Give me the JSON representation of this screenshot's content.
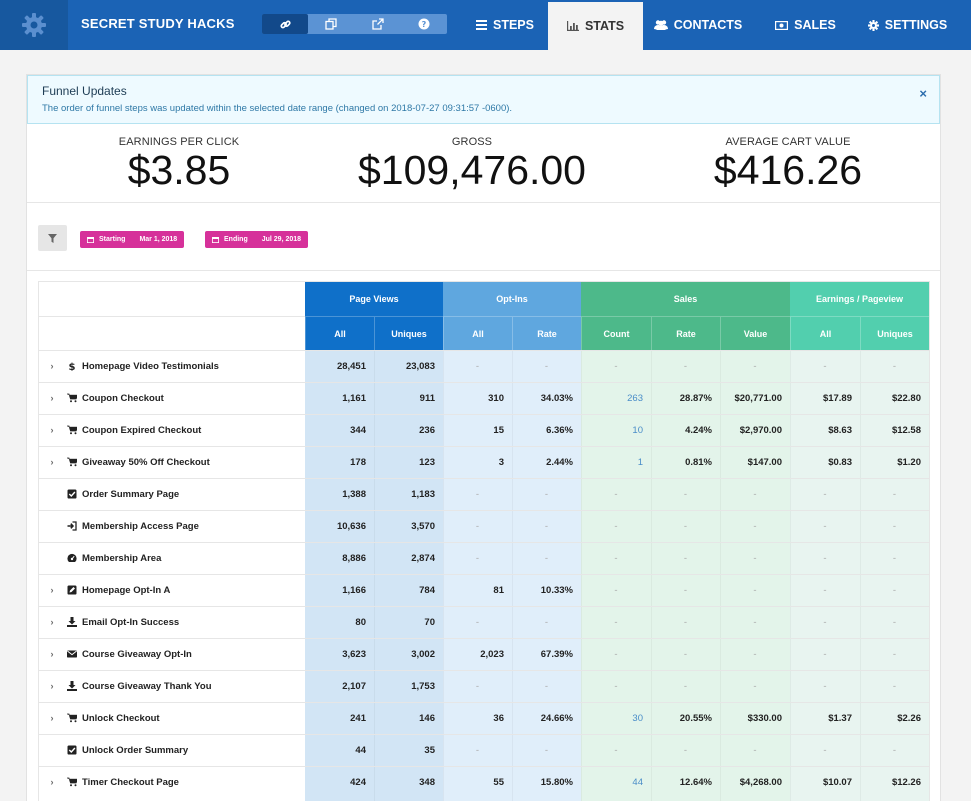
{
  "app": {
    "funnel_name": "SECRET STUDY HACKS"
  },
  "nav": [
    {
      "label": "STEPS",
      "icon": "list-icon"
    },
    {
      "label": "STATS",
      "icon": "bar-chart-icon",
      "active": true
    },
    {
      "label": "CONTACTS",
      "icon": "users-icon"
    },
    {
      "label": "SALES",
      "icon": "money-icon"
    },
    {
      "label": "SETTINGS",
      "icon": "gear-icon"
    }
  ],
  "alert": {
    "title": "Funnel Updates",
    "text": "The order of funnel steps was updated within the selected date range (changed on 2018-07-27 09:31:57 -0600).",
    "close": "×"
  },
  "stats": {
    "epc_label": "EARNINGS PER CLICK",
    "epc_value": "$3.85",
    "gross_label": "GROSS",
    "gross_value": "$109,476.00",
    "acv_label": "AVERAGE CART VALUE",
    "acv_value": "$416.26"
  },
  "filters": {
    "start_label": "Starting",
    "start_value": "Mar 1, 2018",
    "end_label": "Ending",
    "end_value": "Jul 29, 2018"
  },
  "table": {
    "groups": [
      "Page Views",
      "Opt-Ins",
      "Sales",
      "Earnings / Pageview"
    ],
    "subheaders": [
      "All",
      "Uniques",
      "All",
      "Rate",
      "Count",
      "Rate",
      "Value",
      "All",
      "Uniques"
    ],
    "colors": {
      "pv_header": "#0f70c9",
      "optin_header": "#5fa7df",
      "sales_header": "#4db98a",
      "epp_header": "#52cfae",
      "pv_body": "#d2e5f5",
      "optin_body": "#e0eefa",
      "sales_body": "#e3f4ea",
      "epp_body": "#e8f4f0"
    },
    "rows": [
      {
        "name": "Homepage Video Testimonials",
        "icon": "dollar-icon",
        "expandable": true,
        "values": [
          "28,451",
          "23,083",
          "-",
          "-",
          "-",
          "-",
          "-",
          "-",
          "-"
        ]
      },
      {
        "name": "Coupon Checkout",
        "icon": "cart-icon",
        "expandable": true,
        "values": [
          "1,161",
          "911",
          "310",
          "34.03%",
          "263",
          "28.87%",
          "$20,771.00",
          "$17.89",
          "$22.80"
        ]
      },
      {
        "name": "Coupon Expired Checkout",
        "icon": "cart-icon",
        "expandable": true,
        "values": [
          "344",
          "236",
          "15",
          "6.36%",
          "10",
          "4.24%",
          "$2,970.00",
          "$8.63",
          "$12.58"
        ]
      },
      {
        "name": "Giveaway 50% Off Checkout",
        "icon": "cart-icon",
        "expandable": true,
        "values": [
          "178",
          "123",
          "3",
          "2.44%",
          "1",
          "0.81%",
          "$147.00",
          "$0.83",
          "$1.20"
        ]
      },
      {
        "name": "Order Summary Page",
        "icon": "checkbox-icon",
        "expandable": false,
        "values": [
          "1,388",
          "1,183",
          "-",
          "-",
          "-",
          "-",
          "-",
          "-",
          "-"
        ]
      },
      {
        "name": "Membership Access Page",
        "icon": "sign-in-icon",
        "expandable": false,
        "values": [
          "10,636",
          "3,570",
          "-",
          "-",
          "-",
          "-",
          "-",
          "-",
          "-"
        ]
      },
      {
        "name": "Membership Area",
        "icon": "dashboard-icon",
        "expandable": false,
        "values": [
          "8,886",
          "2,874",
          "-",
          "-",
          "-",
          "-",
          "-",
          "-",
          "-"
        ]
      },
      {
        "name": "Homepage Opt-In A",
        "icon": "edit-icon",
        "expandable": true,
        "values": [
          "1,166",
          "784",
          "81",
          "10.33%",
          "-",
          "-",
          "-",
          "-",
          "-"
        ]
      },
      {
        "name": "Email Opt-In Success",
        "icon": "download-icon",
        "expandable": true,
        "values": [
          "80",
          "70",
          "-",
          "-",
          "-",
          "-",
          "-",
          "-",
          "-"
        ]
      },
      {
        "name": "Course Giveaway Opt-In",
        "icon": "envelope-icon",
        "expandable": true,
        "values": [
          "3,623",
          "3,002",
          "2,023",
          "67.39%",
          "-",
          "-",
          "-",
          "-",
          "-"
        ]
      },
      {
        "name": "Course Giveaway Thank You",
        "icon": "download-icon",
        "expandable": true,
        "values": [
          "2,107",
          "1,753",
          "-",
          "-",
          "-",
          "-",
          "-",
          "-",
          "-"
        ]
      },
      {
        "name": "Unlock Checkout",
        "icon": "cart-icon",
        "expandable": true,
        "values": [
          "241",
          "146",
          "36",
          "24.66%",
          "30",
          "20.55%",
          "$330.00",
          "$1.37",
          "$2.26"
        ]
      },
      {
        "name": "Unlock Order Summary",
        "icon": "checkbox-icon",
        "expandable": false,
        "values": [
          "44",
          "35",
          "-",
          "-",
          "-",
          "-",
          "-",
          "-",
          "-"
        ]
      },
      {
        "name": "Timer Checkout Page",
        "icon": "cart-icon",
        "expandable": true,
        "values": [
          "424",
          "348",
          "55",
          "15.80%",
          "44",
          "12.64%",
          "$4,268.00",
          "$10.07",
          "$12.26"
        ]
      }
    ]
  }
}
